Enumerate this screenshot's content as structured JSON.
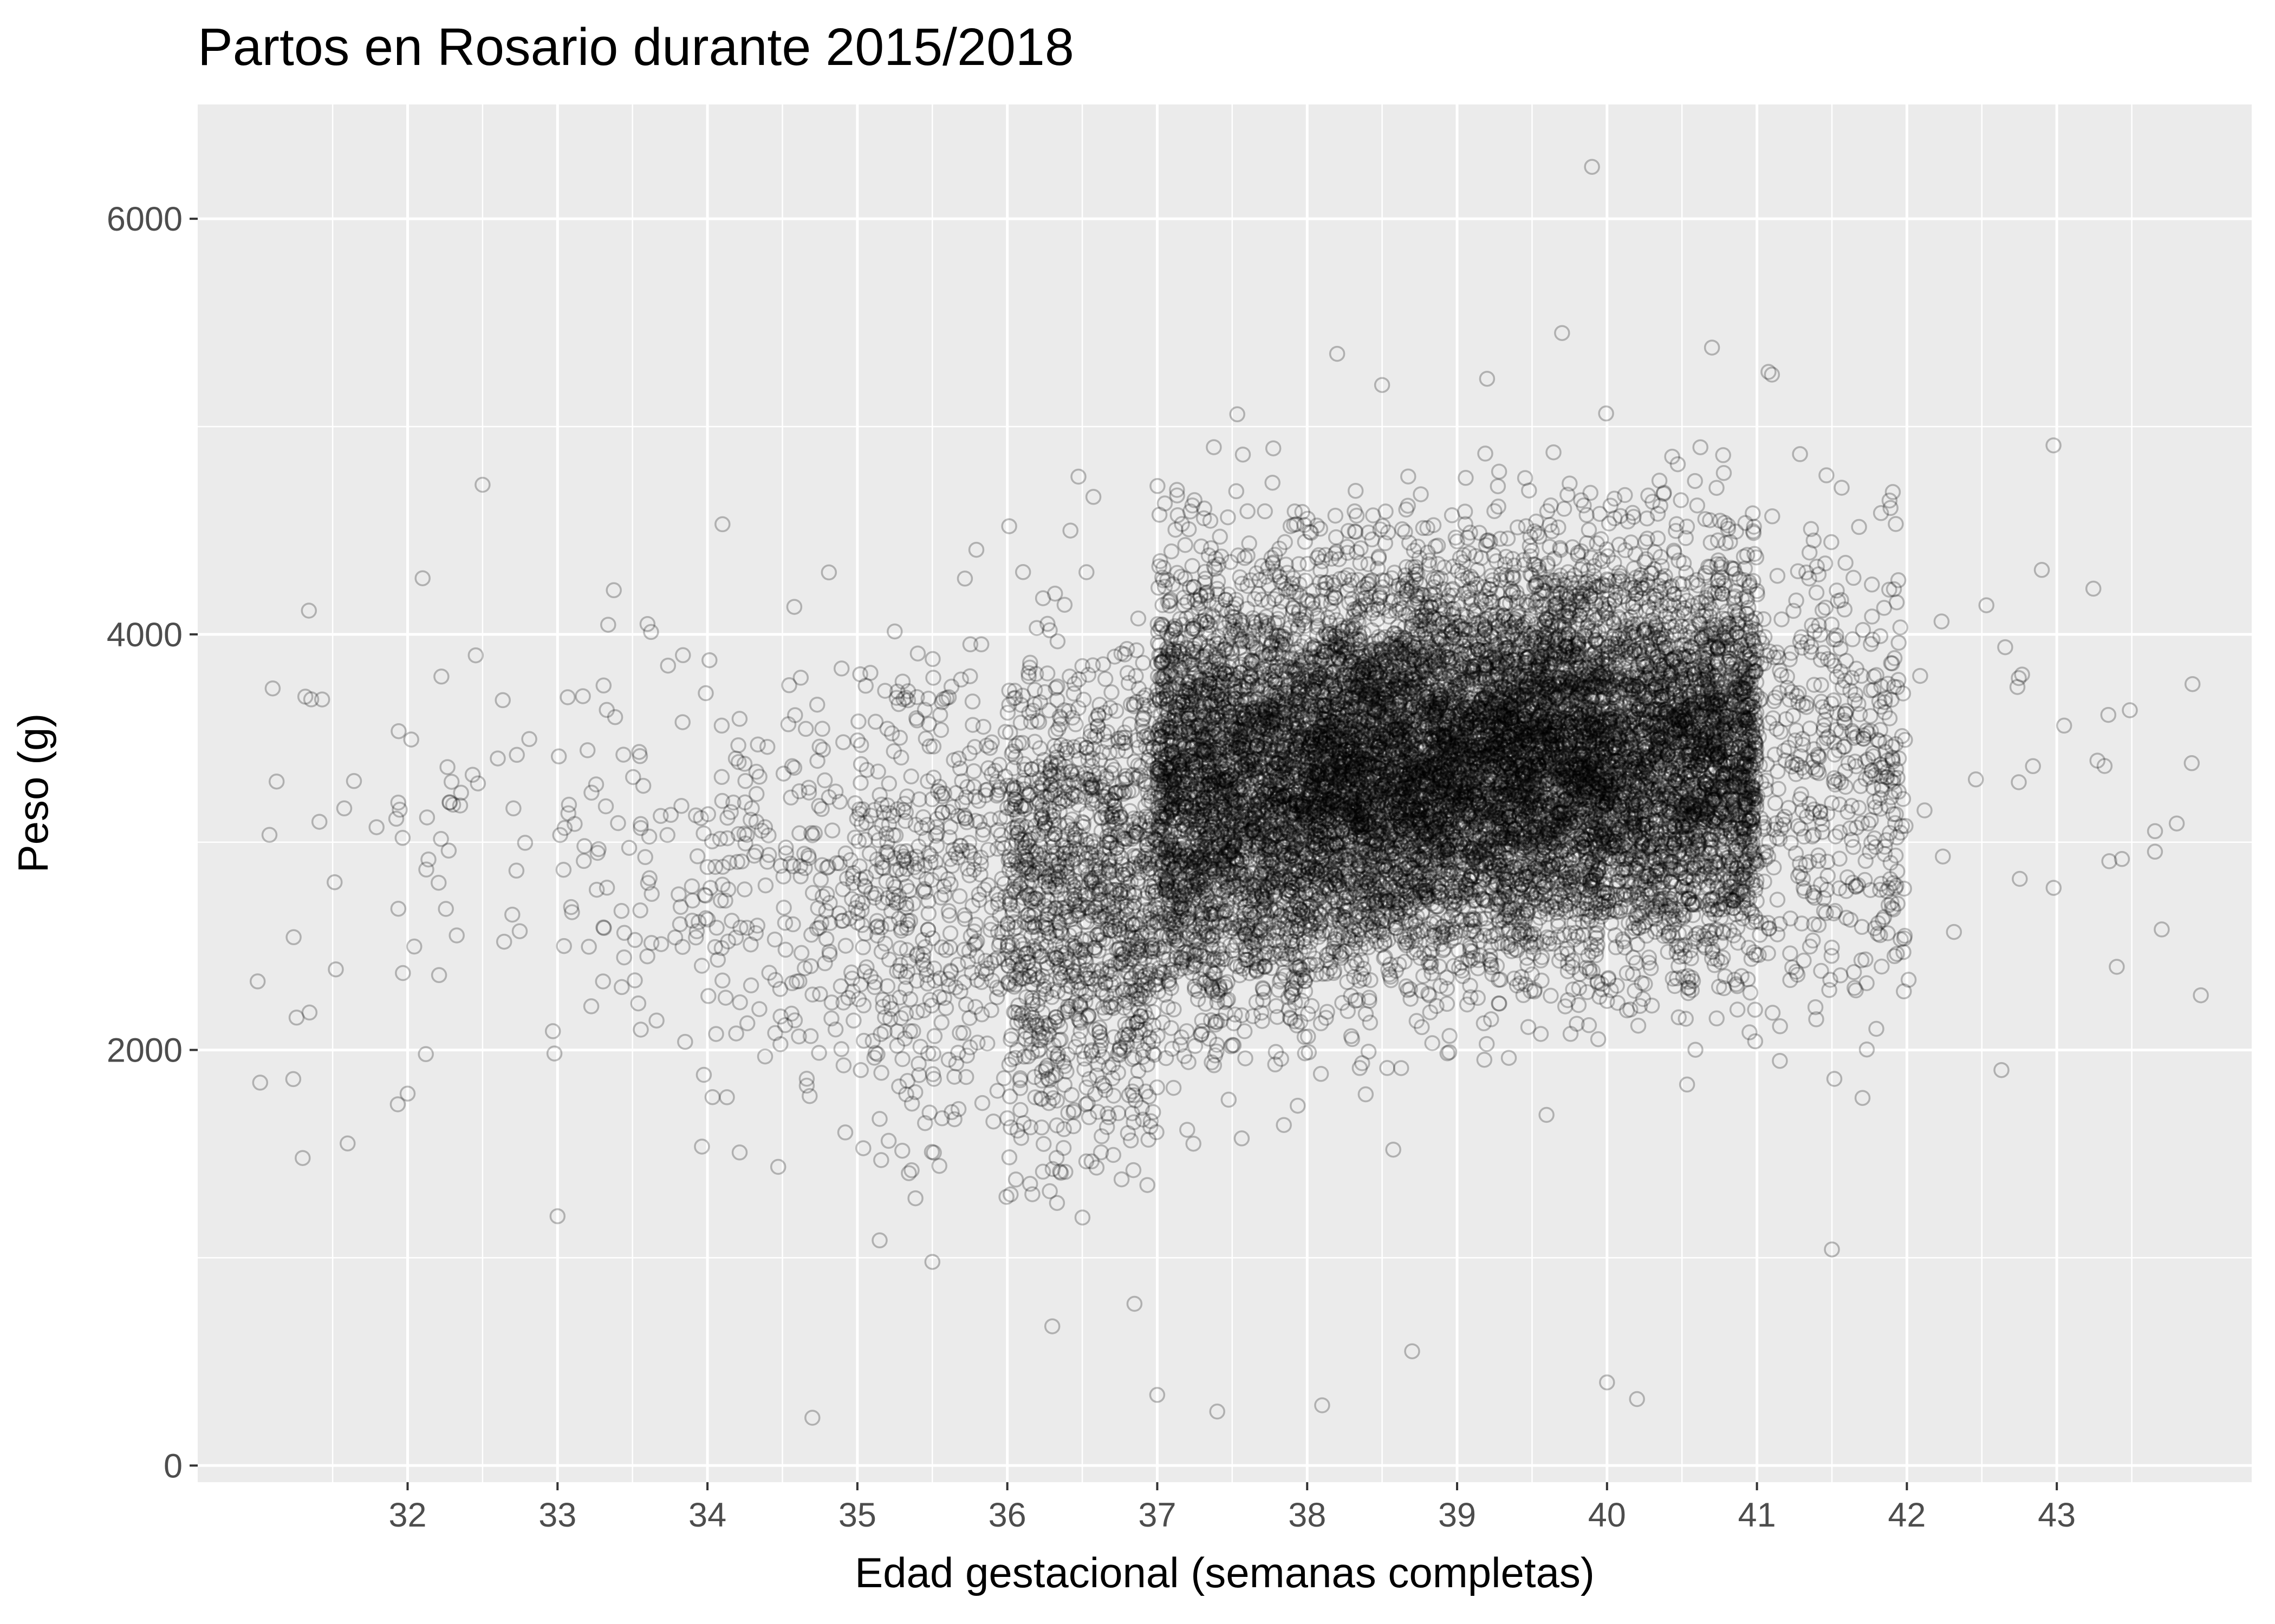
{
  "chart_data": {
    "type": "scatter",
    "title": "Partos en Rosario durante 2015/2018",
    "xlabel": "Edad gestacional (semanas completas)",
    "ylabel": "Peso (g)",
    "xlim": [
      30.6,
      44.3
    ],
    "ylim": [
      -80,
      6550
    ],
    "x_ticks": [
      32,
      33,
      34,
      35,
      36,
      37,
      38,
      39,
      40,
      41,
      42,
      43
    ],
    "x_tick_labels": [
      "32",
      "33",
      "34",
      "35",
      "36",
      "37",
      "38",
      "39",
      "40",
      "41",
      "42",
      "43"
    ],
    "y_ticks": [
      0,
      2000,
      4000,
      6000
    ],
    "y_tick_labels": [
      "0",
      "2000",
      "4000",
      "6000"
    ],
    "grid": true,
    "legend": "none",
    "colors": {
      "panel": "#ebebeb",
      "grid": "#ffffff",
      "point": "#000000",
      "tick": "#333333"
    },
    "marker": "hollow-circle",
    "marker_alpha": 0.25,
    "series_summary": [
      {
        "x_range": [
          31.0,
          32.0
        ],
        "y_mean": 2850,
        "y_sd": 680,
        "count": 25
      },
      {
        "x_range": [
          32.0,
          33.0
        ],
        "y_mean": 2850,
        "y_sd": 620,
        "count": 35
      },
      {
        "x_range": [
          33.0,
          34.0
        ],
        "y_mean": 2850,
        "y_sd": 560,
        "count": 90
      },
      {
        "x_range": [
          34.0,
          35.0
        ],
        "y_mean": 2800,
        "y_sd": 550,
        "count": 200
      },
      {
        "x_range": [
          35.0,
          36.0
        ],
        "y_mean": 2750,
        "y_sd": 580,
        "count": 450
      },
      {
        "x_range": [
          36.0,
          37.0
        ],
        "y_mean": 2750,
        "y_sd": 570,
        "count": 1300
      },
      {
        "x_range": [
          37.0,
          38.0
        ],
        "y_mean": 3250,
        "y_sd": 520,
        "count": 3000
      },
      {
        "x_range": [
          38.0,
          39.0
        ],
        "y_mean": 3350,
        "y_sd": 470,
        "count": 3500
      },
      {
        "x_range": [
          39.0,
          40.0
        ],
        "y_mean": 3400,
        "y_sd": 460,
        "count": 3500
      },
      {
        "x_range": [
          40.0,
          41.0
        ],
        "y_mean": 3400,
        "y_sd": 470,
        "count": 2800
      },
      {
        "x_range": [
          41.0,
          42.0
        ],
        "y_mean": 3350,
        "y_sd": 560,
        "count": 450
      },
      {
        "x_range": [
          42.0,
          43.0
        ],
        "y_mean": 3300,
        "y_sd": 700,
        "count": 18
      },
      {
        "x_range": [
          43.0,
          44.0
        ],
        "y_mean": 3200,
        "y_sd": 650,
        "count": 12
      }
    ],
    "notable_points": [
      {
        "x": 39.9,
        "y": 6250
      },
      {
        "x": 38.2,
        "y": 5350
      },
      {
        "x": 39.7,
        "y": 5450
      },
      {
        "x": 40.7,
        "y": 5380
      },
      {
        "x": 41.1,
        "y": 5250
      },
      {
        "x": 39.2,
        "y": 5230
      },
      {
        "x": 38.5,
        "y": 5200
      },
      {
        "x": 32.5,
        "y": 4720
      },
      {
        "x": 34.1,
        "y": 4530
      },
      {
        "x": 32.1,
        "y": 4270
      },
      {
        "x": 33.6,
        "y": 4050
      },
      {
        "x": 31.1,
        "y": 3740
      },
      {
        "x": 31.0,
        "y": 2330
      },
      {
        "x": 31.3,
        "y": 1480
      },
      {
        "x": 31.6,
        "y": 1550
      },
      {
        "x": 32.0,
        "y": 1790
      },
      {
        "x": 33.0,
        "y": 1200
      },
      {
        "x": 34.7,
        "y": 230
      },
      {
        "x": 35.5,
        "y": 980
      },
      {
        "x": 36.3,
        "y": 670
      },
      {
        "x": 37.0,
        "y": 340
      },
      {
        "x": 37.4,
        "y": 260
      },
      {
        "x": 38.1,
        "y": 290
      },
      {
        "x": 38.7,
        "y": 550
      },
      {
        "x": 40.0,
        "y": 400
      },
      {
        "x": 40.2,
        "y": 320
      },
      {
        "x": 41.5,
        "y": 1040
      },
      {
        "x": 43.4,
        "y": 2400
      },
      {
        "x": 43.7,
        "y": 2580
      },
      {
        "x": 43.9,
        "y": 3380
      },
      {
        "x": 43.8,
        "y": 3090
      },
      {
        "x": 42.9,
        "y": 4310
      }
    ]
  }
}
